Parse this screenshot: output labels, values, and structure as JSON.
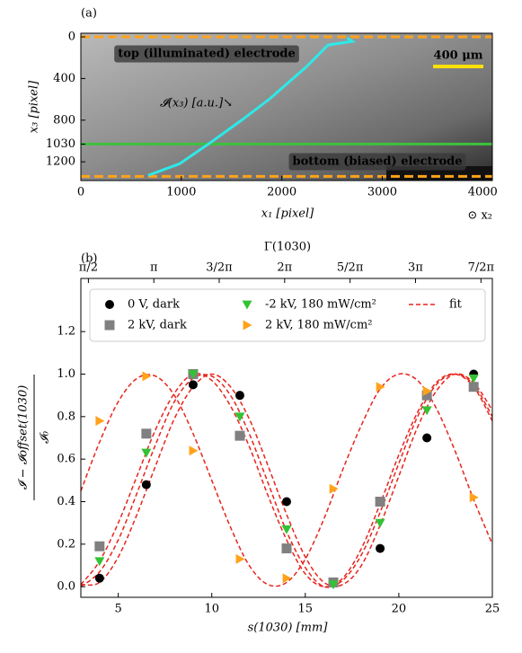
{
  "chart_data": [
    {
      "type": "image-plot",
      "panel_label": "(a)",
      "xlabel": "x₁ [pixel]",
      "ylabel": "x₃ [pixel]",
      "corner_label": "⊙ x₂",
      "xlim": [
        0,
        4096
      ],
      "ylim": [
        1380,
        -35
      ],
      "xticks": [
        0,
        1000,
        2000,
        3000,
        4000
      ],
      "yticks": [
        0,
        400,
        800,
        1030,
        1200
      ],
      "scale_bar_label": "400 μm",
      "annotations": [
        "top (illuminated) electrode",
        "bottom (biased) electrode"
      ],
      "hlines": [
        {
          "y": 0,
          "color": "#ffa31a",
          "style": "dashed"
        },
        {
          "y": 1340,
          "color": "#ffa31a",
          "style": "dashed"
        },
        {
          "y": 1030,
          "color": "#3cc13c",
          "style": "solid"
        }
      ],
      "series": [
        {
          "name": "𝓘(x₃) [a.u.]↘",
          "color": "#2fe8e8",
          "x": [
            671,
            984,
            1298,
            1600,
            1879,
            2237,
            2461,
            2702,
            2650
          ],
          "values": [
            1330,
            1218,
            1010,
            800,
            596,
            294,
            78,
            43,
            10
          ]
        }
      ]
    },
    {
      "type": "scatter",
      "panel_label": "(b)",
      "xlabel": "s(1030) [mm]",
      "ylabel_numerator": "𝓘 − 𝓘offset(1030)",
      "ylabel_denominator": "𝓘₀",
      "x2label": "Γ(1030)",
      "xlim": [
        3,
        25
      ],
      "ylim": [
        -0.05,
        1.45
      ],
      "x2lim": [
        1.39,
        11.27
      ],
      "xticks": [
        5,
        10,
        15,
        20,
        25
      ],
      "yticks": [
        {
          "value": 0,
          "label": "0.0"
        },
        {
          "value": 0.2,
          "label": "0.2"
        },
        {
          "value": 0.4,
          "label": "0.4"
        },
        {
          "value": 0.6,
          "label": "0.6"
        },
        {
          "value": 0.8,
          "label": "0.8"
        },
        {
          "value": 1,
          "label": "1.0"
        },
        {
          "value": 1.2,
          "label": "1.2"
        }
      ],
      "x2ticks": [
        {
          "value": 1.571,
          "label": "π/2"
        },
        {
          "value": 3.142,
          "label": "π"
        },
        {
          "value": 4.712,
          "label": "3/2π"
        },
        {
          "value": 6.283,
          "label": "2π"
        },
        {
          "value": 7.854,
          "label": "5/2π"
        },
        {
          "value": 9.425,
          "label": "3π"
        },
        {
          "value": 10.996,
          "label": "7/2π"
        }
      ],
      "legend": "upper",
      "x": [
        4,
        6.5,
        9,
        11.5,
        14,
        16.5,
        19,
        21.5,
        24
      ],
      "series": [
        {
          "name": "0 V, dark",
          "color": "#000000",
          "marker": "circle",
          "values": [
            0.04,
            0.48,
            0.95,
            0.9,
            0.4,
            0.02,
            0.18,
            0.7,
            1.0
          ]
        },
        {
          "name": "2 kV, dark",
          "color": "#808080",
          "marker": "square",
          "values": [
            0.19,
            0.72,
            1.0,
            0.71,
            0.18,
            0.02,
            0.4,
            0.9,
            0.94
          ]
        },
        {
          "name": "-2 kV, 180 mW/cm²",
          "color": "#33c233",
          "marker": "triangle-down",
          "values": [
            0.12,
            0.63,
            1.0,
            0.8,
            0.27,
            0.01,
            0.3,
            0.83,
            0.98
          ]
        },
        {
          "name": "2 kV, 180 mW/cm²",
          "color": "#ffa31a",
          "marker": "triangle-right",
          "values": [
            0.78,
            0.99,
            0.64,
            0.13,
            0.04,
            0.46,
            0.94,
            0.92,
            0.42
          ]
        }
      ],
      "fit": {
        "name": "fit",
        "color": "#e8241c",
        "x": [
          3,
          4,
          5,
          6,
          7,
          8,
          9,
          10,
          11,
          12,
          13,
          14,
          15,
          16,
          17,
          18,
          19,
          20,
          21,
          22,
          23,
          24,
          25
        ],
        "curves": [
          [
            0.01,
            0.02,
            0.14,
            0.34,
            0.57,
            0.79,
            0.94,
            1.0,
            0.94,
            0.79,
            0.57,
            0.34,
            0.14,
            0.02,
            0.01,
            0.1,
            0.29,
            0.52,
            0.75,
            0.92,
            1.0,
            0.96,
            0.83
          ],
          [
            0.01,
            0.12,
            0.3,
            0.52,
            0.74,
            0.91,
            1.0,
            0.97,
            0.85,
            0.66,
            0.43,
            0.22,
            0.06,
            0.0,
            0.04,
            0.18,
            0.39,
            0.62,
            0.82,
            0.96,
            1.0,
            0.94,
            0.78
          ],
          [
            0.0,
            0.07,
            0.22,
            0.44,
            0.67,
            0.87,
            0.98,
            0.99,
            0.9,
            0.72,
            0.49,
            0.26,
            0.09,
            0.0,
            0.03,
            0.15,
            0.35,
            0.58,
            0.8,
            0.95,
            1.0,
            0.95,
            0.8
          ],
          [
            0.45,
            0.68,
            0.87,
            0.98,
            0.99,
            0.9,
            0.72,
            0.5,
            0.28,
            0.1,
            0.01,
            0.02,
            0.13,
            0.32,
            0.55,
            0.76,
            0.93,
            1.0,
            0.97,
            0.84,
            0.64,
            0.41,
            0.2
          ]
        ]
      }
    }
  ]
}
